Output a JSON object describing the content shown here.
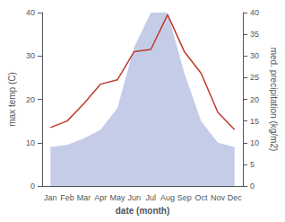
{
  "chart_data": {
    "type": "line",
    "xlabel": "date (month)",
    "ylabel": "max temp (C)",
    "y2label": "med. precipitation (kg/m2)",
    "categories": [
      "Jan",
      "Feb",
      "Mar",
      "Apr",
      "May",
      "Jun",
      "Jul",
      "Aug",
      "Sep",
      "Oct",
      "Nov",
      "Dec"
    ],
    "series": [
      {
        "type": "area",
        "color": "#c5cce8",
        "axis": "y2",
        "values": [
          9.0,
          9.5,
          11.0,
          13.0,
          18.0,
          32.0,
          40.0,
          40.0,
          26.0,
          15.0,
          10.0,
          9.0
        ]
      },
      {
        "type": "line",
        "color": "#c0392b",
        "values": [
          13.5,
          15.0,
          19.0,
          23.5,
          24.5,
          31.0,
          31.5,
          39.5,
          31.0,
          26.0,
          17.0,
          13.0
        ]
      }
    ],
    "ylim": [
      0,
      40
    ],
    "yticks": [
      0,
      10,
      20,
      30,
      40
    ],
    "y2lim": [
      0,
      40
    ],
    "y2ticks": [
      0,
      5,
      10,
      15,
      20,
      25,
      30,
      35,
      40
    ],
    "grid": false
  }
}
